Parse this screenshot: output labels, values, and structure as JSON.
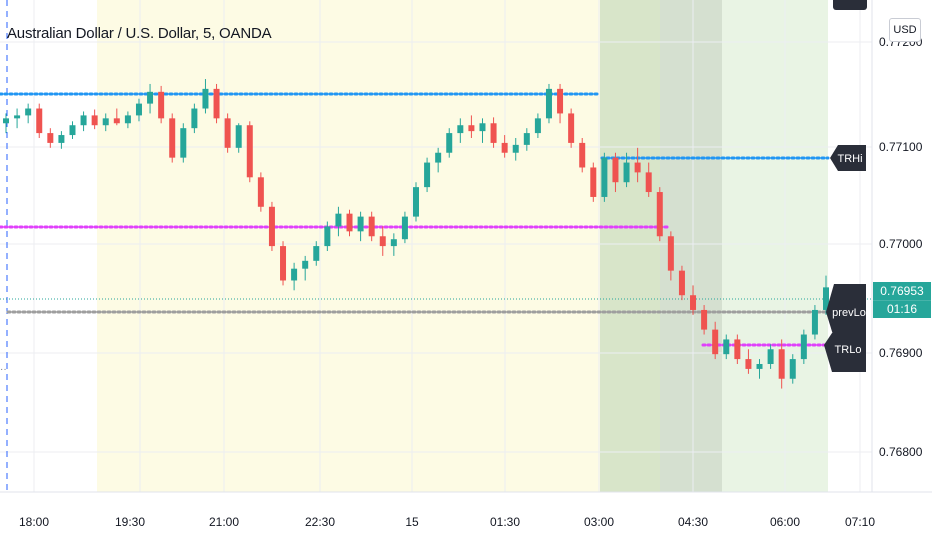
{
  "title": "Australian Dollar / U.S. Dollar, 5, OANDA",
  "currency_button": "USD",
  "last_price": {
    "value": "0.76953",
    "countdown": "01:16"
  },
  "colors": {
    "up": "#26a69a",
    "down": "#ef5350",
    "trhi_line": "#2196f3",
    "session_line": "#e040fb",
    "prev_line": "#9e9e9e",
    "label_bg": "#2a2e39"
  },
  "chart_data": {
    "type": "candlestick",
    "title": "Australian Dollar / U.S. Dollar, 5, OANDA",
    "ylim": [
      0.7675,
      0.7724
    ],
    "y_ticks": [
      "0.77200",
      "0.77100",
      "0.77000",
      "0.76900",
      "0.76800"
    ],
    "x_ticks": [
      "18:00",
      "19:30",
      "21:00",
      "22:30",
      "15",
      "01:30",
      "03:00",
      "04:30",
      "06:00",
      "07:10"
    ],
    "levels": [
      {
        "label": "TRHi",
        "value": 0.77091
      },
      {
        "label": "prevLo",
        "value": 0.76953
      },
      {
        "label": "TRLo",
        "value": 0.76906
      }
    ],
    "reference_lines": [
      0.77151,
      0.77021,
      0.7702,
      0.76941
    ],
    "shaded_sessions": [
      {
        "from": "19:00",
        "to": "03:00"
      },
      {
        "from": "03:00",
        "to": "04:30"
      },
      {
        "from": "04:30",
        "to": "06:30"
      }
    ],
    "candles": [
      [
        0.7712,
        0.7713,
        0.7711,
        0.77125
      ],
      [
        0.77125,
        0.77135,
        0.77115,
        0.77128
      ],
      [
        0.77128,
        0.7714,
        0.7712,
        0.77135
      ],
      [
        0.77135,
        0.7714,
        0.77105,
        0.7711
      ],
      [
        0.7711,
        0.77115,
        0.77095,
        0.771
      ],
      [
        0.771,
        0.77112,
        0.77094,
        0.77108
      ],
      [
        0.77108,
        0.77122,
        0.77104,
        0.77118
      ],
      [
        0.77118,
        0.77132,
        0.77112,
        0.77128
      ],
      [
        0.77128,
        0.77134,
        0.77114,
        0.77118
      ],
      [
        0.77118,
        0.7713,
        0.77112,
        0.77125
      ],
      [
        0.77125,
        0.77135,
        0.77118,
        0.7712
      ],
      [
        0.7712,
        0.77132,
        0.77115,
        0.77128
      ],
      [
        0.77128,
        0.77145,
        0.77122,
        0.7714
      ],
      [
        0.7714,
        0.7716,
        0.7713,
        0.77152
      ],
      [
        0.77152,
        0.77158,
        0.7712,
        0.77125
      ],
      [
        0.77125,
        0.7713,
        0.7708,
        0.77085
      ],
      [
        0.77085,
        0.7712,
        0.7708,
        0.77115
      ],
      [
        0.77115,
        0.7714,
        0.7711,
        0.77135
      ],
      [
        0.77135,
        0.77165,
        0.7713,
        0.77155
      ],
      [
        0.77155,
        0.7716,
        0.7712,
        0.77125
      ],
      [
        0.77125,
        0.7713,
        0.7709,
        0.77095
      ],
      [
        0.77095,
        0.7712,
        0.7709,
        0.77118
      ],
      [
        0.77118,
        0.77122,
        0.7706,
        0.77065
      ],
      [
        0.77065,
        0.7707,
        0.7703,
        0.77035
      ],
      [
        0.77035,
        0.7704,
        0.7699,
        0.76995
      ],
      [
        0.76995,
        0.77,
        0.76955,
        0.7696
      ],
      [
        0.7696,
        0.76978,
        0.7695,
        0.76972
      ],
      [
        0.76972,
        0.76985,
        0.7696,
        0.7698
      ],
      [
        0.7698,
        0.77,
        0.76975,
        0.76995
      ],
      [
        0.76995,
        0.7702,
        0.7699,
        0.77015
      ],
      [
        0.77015,
        0.77035,
        0.77005,
        0.77028
      ],
      [
        0.77028,
        0.77032,
        0.77005,
        0.7701
      ],
      [
        0.7701,
        0.7703,
        0.77,
        0.77025
      ],
      [
        0.77025,
        0.7703,
        0.77,
        0.77005
      ],
      [
        0.77005,
        0.77015,
        0.76985,
        0.76995
      ],
      [
        0.76995,
        0.77008,
        0.76985,
        0.77002
      ],
      [
        0.77002,
        0.7703,
        0.76998,
        0.77025
      ],
      [
        0.77025,
        0.7706,
        0.7702,
        0.77055
      ],
      [
        0.77055,
        0.77085,
        0.7705,
        0.7708
      ],
      [
        0.7708,
        0.77095,
        0.7707,
        0.7709
      ],
      [
        0.7709,
        0.77115,
        0.77085,
        0.7711
      ],
      [
        0.7711,
        0.77125,
        0.771,
        0.77118
      ],
      [
        0.77118,
        0.77128,
        0.77105,
        0.77112
      ],
      [
        0.77112,
        0.77125,
        0.771,
        0.7712
      ],
      [
        0.7712,
        0.77126,
        0.77095,
        0.771
      ],
      [
        0.771,
        0.77108,
        0.77085,
        0.7709
      ],
      [
        0.7709,
        0.77105,
        0.77082,
        0.77098
      ],
      [
        0.77098,
        0.77115,
        0.77092,
        0.7711
      ],
      [
        0.7711,
        0.7713,
        0.77105,
        0.77125
      ],
      [
        0.77125,
        0.7716,
        0.7712,
        0.77155
      ],
      [
        0.77155,
        0.7716,
        0.7712,
        0.7713
      ],
      [
        0.7713,
        0.77135,
        0.77095,
        0.771
      ],
      [
        0.771,
        0.77105,
        0.7707,
        0.77075
      ],
      [
        0.77075,
        0.7708,
        0.7704,
        0.77045
      ],
      [
        0.77045,
        0.7709,
        0.7704,
        0.77085
      ],
      [
        0.77085,
        0.7709,
        0.7705,
        0.7706
      ],
      [
        0.7706,
        0.7709,
        0.77055,
        0.7708
      ],
      [
        0.7708,
        0.77095,
        0.7706,
        0.7707
      ],
      [
        0.7707,
        0.7708,
        0.77045,
        0.7705
      ],
      [
        0.7705,
        0.77055,
        0.77,
        0.77005
      ],
      [
        0.77005,
        0.7701,
        0.7696,
        0.7697
      ],
      [
        0.7697,
        0.76975,
        0.7694,
        0.76945
      ],
      [
        0.76945,
        0.76955,
        0.76925,
        0.7693
      ],
      [
        0.7693,
        0.76935,
        0.76905,
        0.7691
      ],
      [
        0.7691,
        0.76918,
        0.7688,
        0.76885
      ],
      [
        0.76885,
        0.76905,
        0.7688,
        0.769
      ],
      [
        0.769,
        0.76905,
        0.76875,
        0.7688
      ],
      [
        0.7688,
        0.7689,
        0.76865,
        0.7687
      ],
      [
        0.7687,
        0.7688,
        0.7686,
        0.76875
      ],
      [
        0.76875,
        0.76895,
        0.7687,
        0.7689
      ],
      [
        0.7689,
        0.769,
        0.7685,
        0.7686
      ],
      [
        0.7686,
        0.76885,
        0.76855,
        0.7688
      ],
      [
        0.7688,
        0.7691,
        0.76875,
        0.76905
      ],
      [
        0.76905,
        0.76935,
        0.769,
        0.7693
      ],
      [
        0.7693,
        0.76965,
        0.76925,
        0.76953
      ]
    ]
  }
}
